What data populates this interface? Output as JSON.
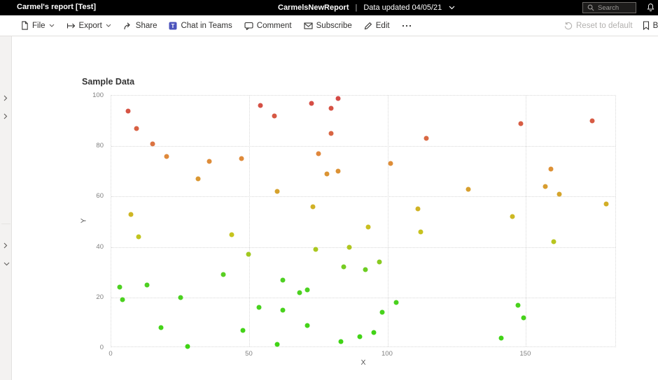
{
  "top_bar": {
    "report_title": "Carmel's report [Test]",
    "report_name": "CarmelsNewReport",
    "separator": "|",
    "data_updated": "Data updated 04/05/21",
    "search_placeholder": "Search"
  },
  "toolbar": {
    "items": [
      {
        "label": "File",
        "has_chevron": true
      },
      {
        "label": "Export",
        "has_chevron": true
      },
      {
        "label": "Share",
        "has_chevron": false
      },
      {
        "label": "Chat in Teams",
        "has_chevron": false
      },
      {
        "label": "Comment",
        "has_chevron": false
      },
      {
        "label": "Subscribe",
        "has_chevron": false
      },
      {
        "label": "Edit",
        "has_chevron": false
      }
    ],
    "reset_to_default": "Reset to default",
    "bookmarks_label": "Bo"
  },
  "colors": {
    "teams_brand": "#4b53bc",
    "toolbar_icon": "#323130",
    "disabled_text": "#b3b1af",
    "grid": "#d8d8d8"
  },
  "chart_data": {
    "type": "scatter",
    "title": "Sample Data",
    "xlabel": "X",
    "ylabel": "Y",
    "xlim": [
      0,
      182.8
    ],
    "ylim": [
      0,
      100
    ],
    "xticks": [
      0,
      50,
      100,
      150
    ],
    "yticks": [
      0,
      20,
      40,
      60,
      80,
      100
    ],
    "grid": true,
    "legend": "none",
    "color_by": "y",
    "colormap": [
      [
        0,
        "#3fd414"
      ],
      [
        28,
        "#4fd023"
      ],
      [
        36,
        "#9cc820"
      ],
      [
        45,
        "#c6c41e"
      ],
      [
        56,
        "#d1b126"
      ],
      [
        65,
        "#d99a30"
      ],
      [
        77,
        "#e0873c"
      ],
      [
        83,
        "#d96943"
      ],
      [
        100,
        "#d44845"
      ]
    ],
    "points": [
      {
        "x": 6,
        "y": 94
      },
      {
        "x": 9,
        "y": 87
      },
      {
        "x": 15,
        "y": 81
      },
      {
        "x": 20,
        "y": 76
      },
      {
        "x": 7,
        "y": 53
      },
      {
        "x": 10,
        "y": 44
      },
      {
        "x": 3,
        "y": 24
      },
      {
        "x": 4,
        "y": 19
      },
      {
        "x": 13,
        "y": 25
      },
      {
        "x": 18,
        "y": 8
      },
      {
        "x": 25,
        "y": 20
      },
      {
        "x": 27.5,
        "y": 0.5
      },
      {
        "x": 31.5,
        "y": 67
      },
      {
        "x": 35.5,
        "y": 74
      },
      {
        "x": 43.5,
        "y": 45
      },
      {
        "x": 40.5,
        "y": 29
      },
      {
        "x": 47,
        "y": 75
      },
      {
        "x": 49.5,
        "y": 37
      },
      {
        "x": 53.5,
        "y": 16
      },
      {
        "x": 47.5,
        "y": 7
      },
      {
        "x": 54,
        "y": 96
      },
      {
        "x": 59,
        "y": 92
      },
      {
        "x": 60,
        "y": 62
      },
      {
        "x": 60,
        "y": 1.5
      },
      {
        "x": 62,
        "y": 27
      },
      {
        "x": 62,
        "y": 15
      },
      {
        "x": 68,
        "y": 22
      },
      {
        "x": 71,
        "y": 23
      },
      {
        "x": 71,
        "y": 9
      },
      {
        "x": 72.5,
        "y": 97
      },
      {
        "x": 73,
        "y": 56
      },
      {
        "x": 74,
        "y": 39
      },
      {
        "x": 75,
        "y": 77
      },
      {
        "x": 78,
        "y": 69
      },
      {
        "x": 79.5,
        "y": 95
      },
      {
        "x": 79.5,
        "y": 85
      },
      {
        "x": 82,
        "y": 99
      },
      {
        "x": 82,
        "y": 70
      },
      {
        "x": 83,
        "y": 2.5
      },
      {
        "x": 84,
        "y": 32
      },
      {
        "x": 86,
        "y": 40
      },
      {
        "x": 90,
        "y": 4.5
      },
      {
        "x": 92,
        "y": 31
      },
      {
        "x": 93,
        "y": 48
      },
      {
        "x": 95,
        "y": 6
      },
      {
        "x": 97,
        "y": 34
      },
      {
        "x": 98,
        "y": 14
      },
      {
        "x": 101,
        "y": 73
      },
      {
        "x": 103,
        "y": 18
      },
      {
        "x": 111,
        "y": 55
      },
      {
        "x": 112,
        "y": 46
      },
      {
        "x": 114,
        "y": 83
      },
      {
        "x": 129,
        "y": 63
      },
      {
        "x": 141,
        "y": 4
      },
      {
        "x": 145,
        "y": 52
      },
      {
        "x": 147,
        "y": 17
      },
      {
        "x": 148,
        "y": 89
      },
      {
        "x": 149,
        "y": 12
      },
      {
        "x": 157,
        "y": 64
      },
      {
        "x": 159,
        "y": 71
      },
      {
        "x": 160,
        "y": 42
      },
      {
        "x": 162,
        "y": 61
      },
      {
        "x": 174,
        "y": 90
      },
      {
        "x": 179,
        "y": 57
      }
    ]
  }
}
